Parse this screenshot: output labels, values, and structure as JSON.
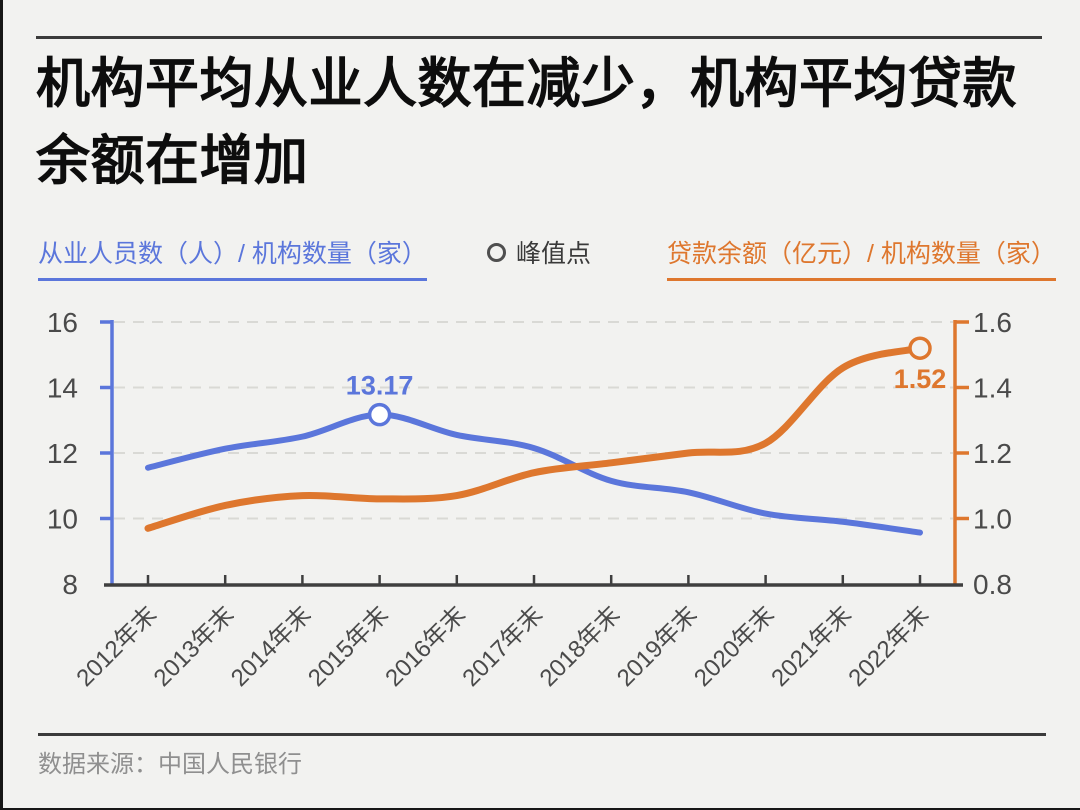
{
  "title": "机构平均从业人数在减少，机构平均贷款余额在增加",
  "legend": {
    "left": "从业人员数（人）/ 机构数量（家）",
    "peak": "峰值点",
    "right": "贷款余额（亿元）/ 机构数量（家）"
  },
  "source": "数据来源：中国人民银行",
  "colors": {
    "blue": "#5B76DB",
    "orange": "#DE772E",
    "axis_dark": "#3F3F3F",
    "tick_label": "#4A4A4A",
    "grid": "#D9D9D5",
    "background": "#F2F2F0",
    "marker_fill": "#FFFFFF",
    "peak_legend_ring": "#4F4F4F",
    "annotation_blue": "#5B76DB",
    "annotation_orange": "#DE772E"
  },
  "chart_data": {
    "type": "line",
    "categories": [
      "2012年末",
      "2013年末",
      "2014年末",
      "2015年末",
      "2016年末",
      "2017年末",
      "2018年末",
      "2019年末",
      "2020年末",
      "2021年末",
      "2022年末"
    ],
    "series": [
      {
        "name": "从业人员数（人）/ 机构数量（家）",
        "axis": "left",
        "color_key": "blue",
        "values": [
          11.55,
          12.13,
          12.5,
          13.17,
          12.55,
          12.15,
          11.15,
          10.8,
          10.15,
          9.9,
          9.57
        ],
        "marker": {
          "index": 3,
          "label": "13.17",
          "kind": "peak"
        }
      },
      {
        "name": "贷款余额（亿元）/ 机构数量（家）",
        "axis": "right",
        "color_key": "orange",
        "values": [
          0.97,
          1.04,
          1.07,
          1.06,
          1.07,
          1.14,
          1.17,
          1.2,
          1.23,
          1.46,
          1.52
        ],
        "marker": {
          "index": 10,
          "label": "1.52",
          "kind": "endpoint"
        }
      }
    ],
    "left_axis": {
      "min": 8,
      "max": 16,
      "ticks": [
        8,
        10,
        12,
        14,
        16
      ]
    },
    "right_axis": {
      "min": 0.8,
      "max": 1.6,
      "ticks": [
        0.8,
        1.0,
        1.2,
        1.4,
        1.6
      ]
    },
    "grid": "horizontal-dashed",
    "legend_position": "top",
    "x_label_rotation": -45
  }
}
